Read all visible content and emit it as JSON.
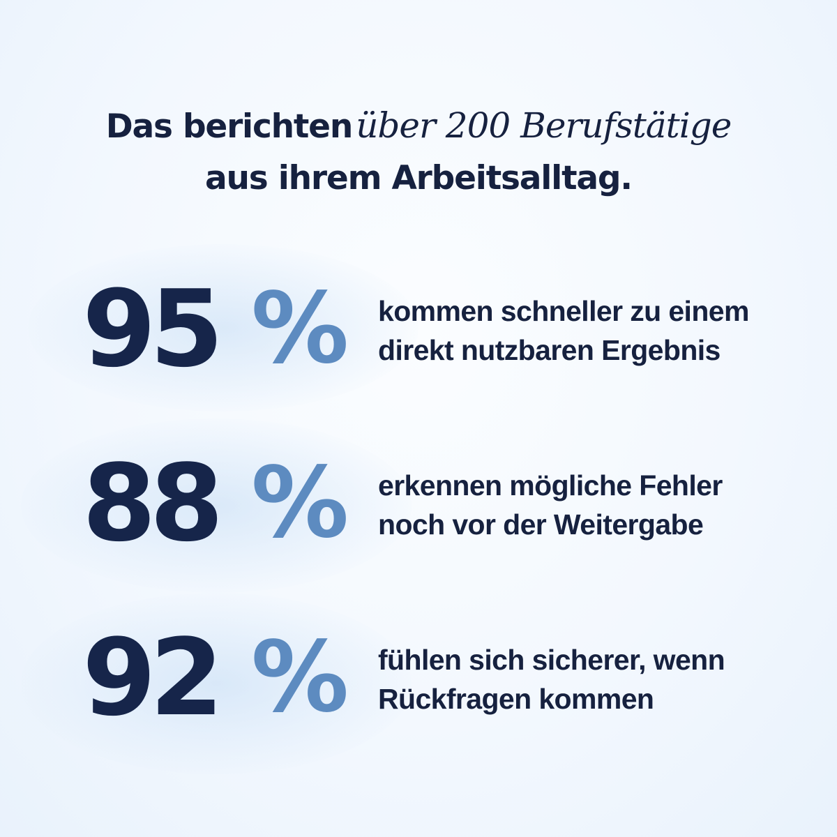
{
  "headline": {
    "line1_bold": "Das berichten",
    "line1_italic": "über 200 Berufstätige",
    "line2": "aus ihrem Arbeitsalltag."
  },
  "stats": [
    {
      "value": "95",
      "unit": "%",
      "line1": "kommen schneller zu einem",
      "line2": "direkt nutzbaren Ergebnis"
    },
    {
      "value": "88",
      "unit": "%",
      "line1": "erkennen mögliche Fehler",
      "line2": "noch vor der Weitergabe"
    },
    {
      "value": "92",
      "unit": "%",
      "line1": "fühlen sich sicherer, wenn",
      "line2": "Rückfragen kommen"
    }
  ],
  "colors": {
    "navy": "#16213f",
    "accent_blue": "#5d8bc0",
    "background": "#f3f8fe"
  }
}
